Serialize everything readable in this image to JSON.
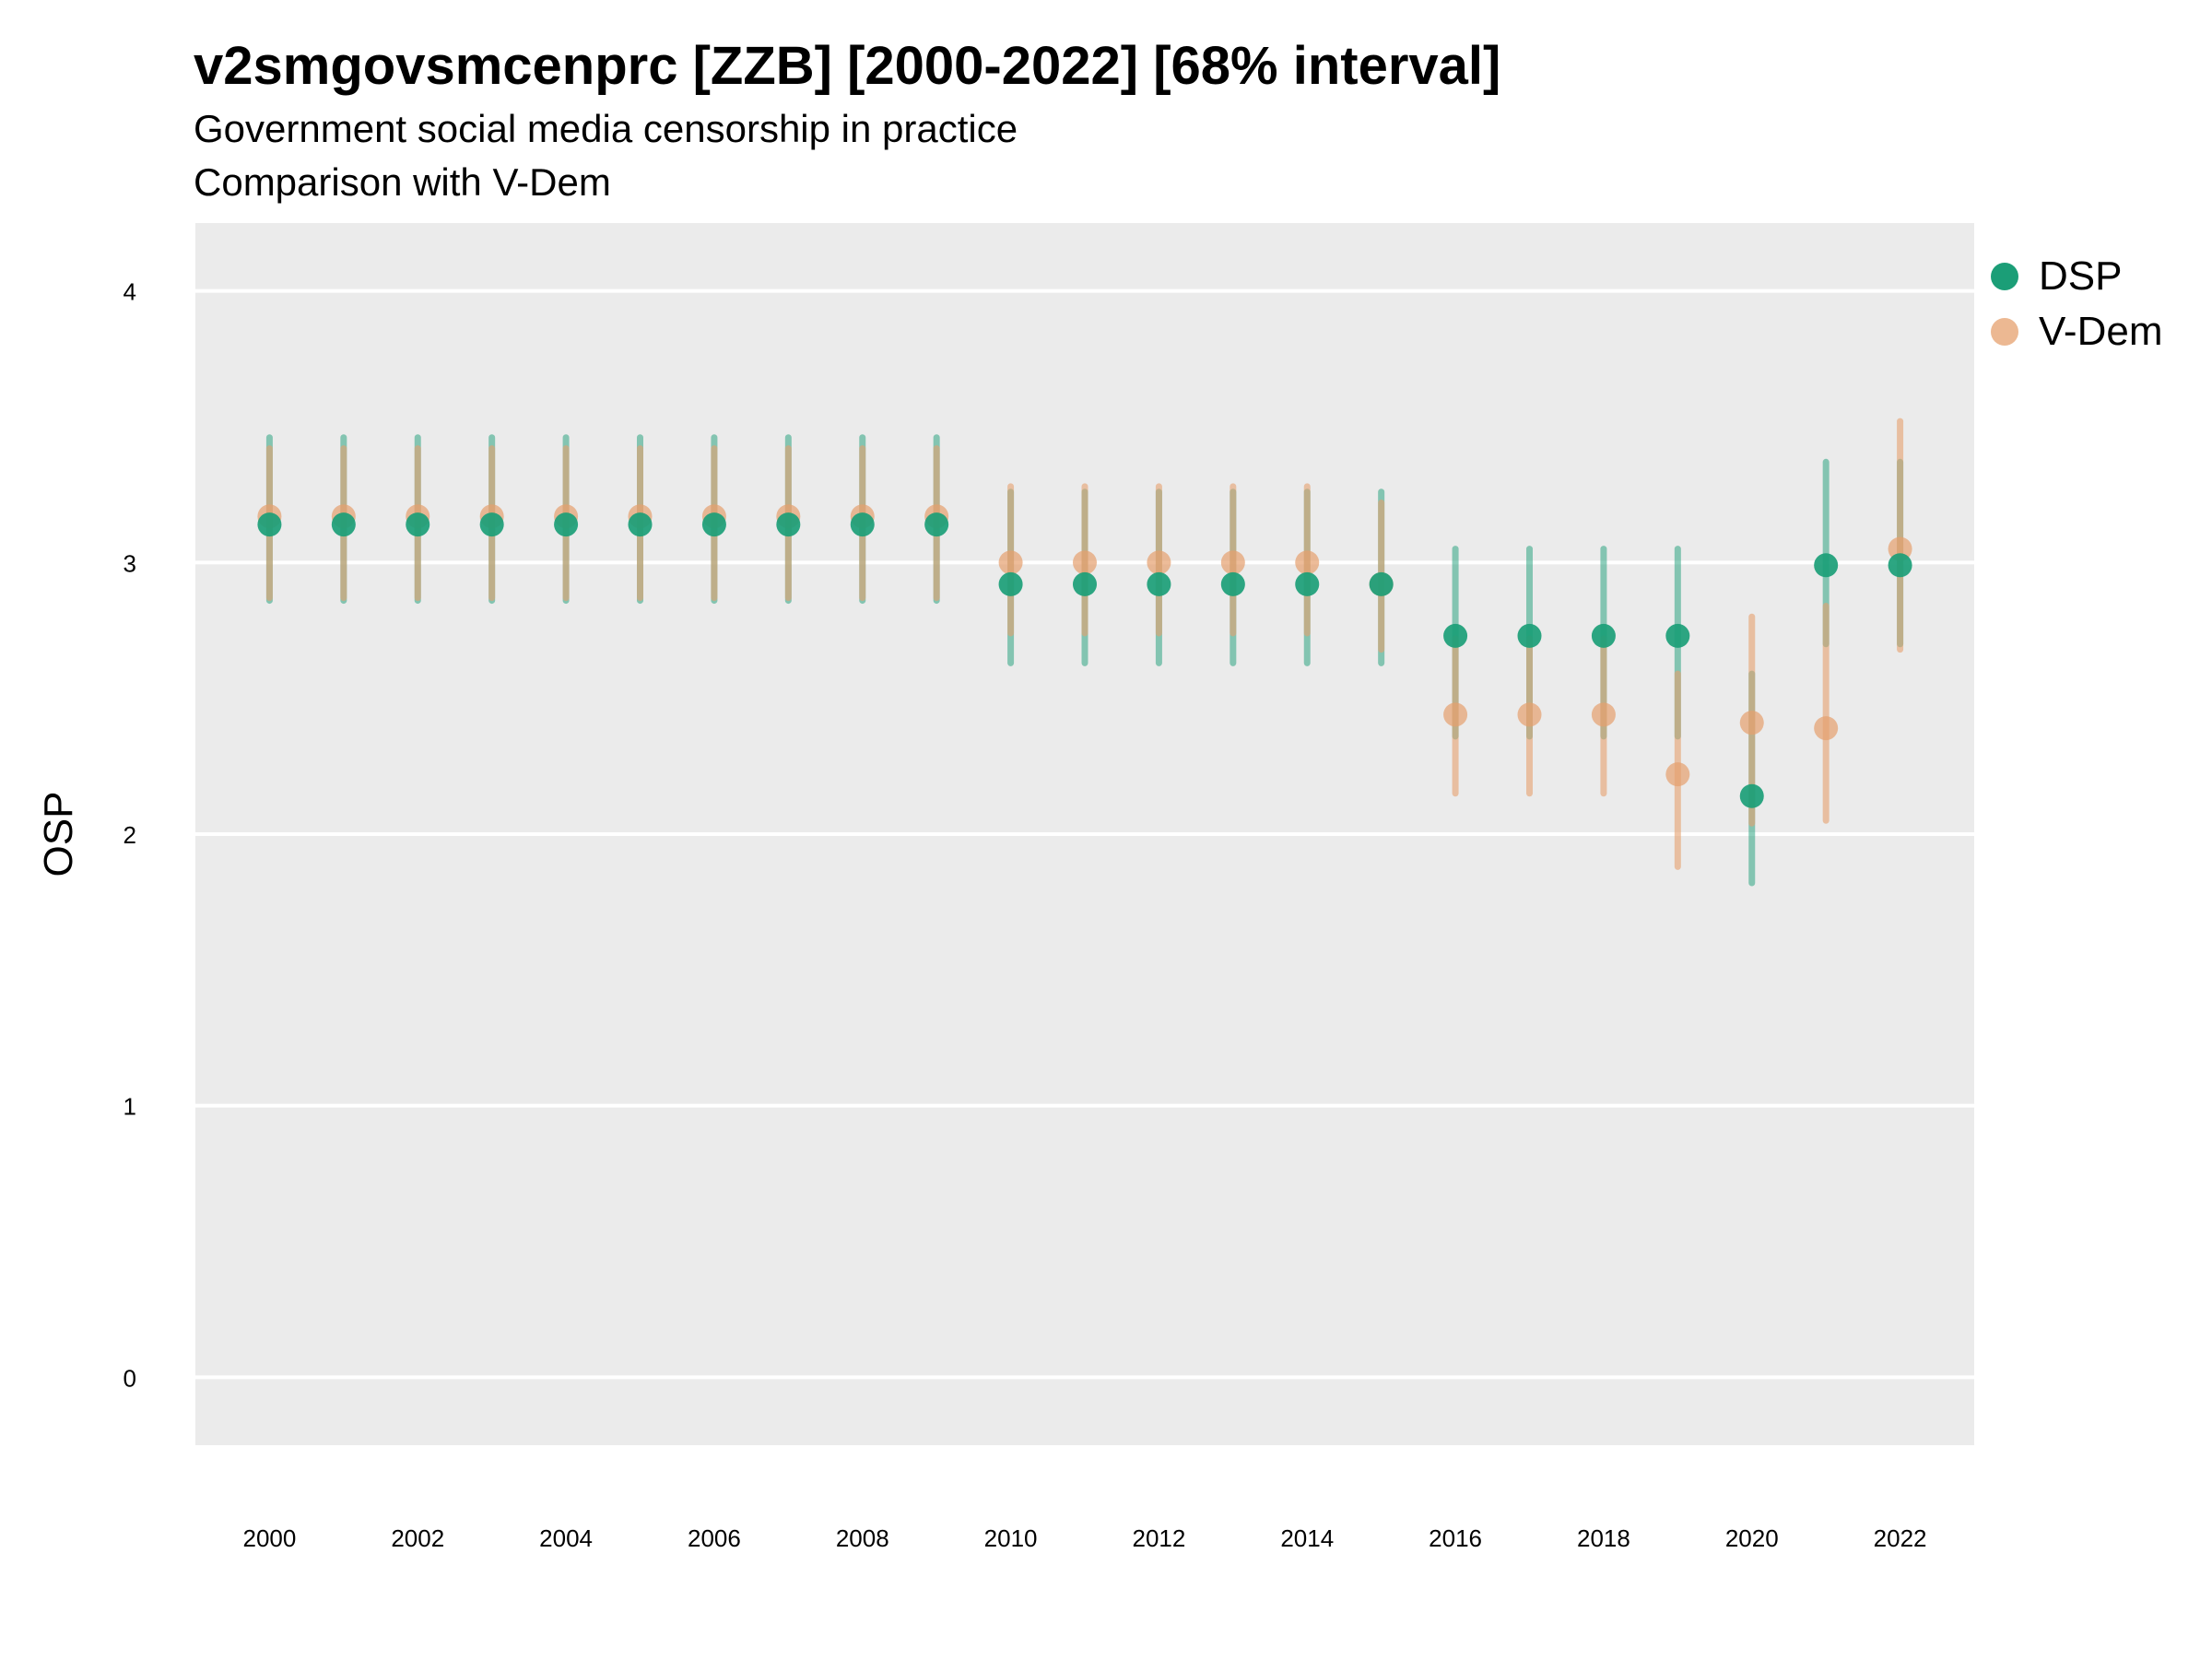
{
  "title": "v2smgovsmcenprc [ZZB] [2000-2022] [68% interval]",
  "subtitle": "Government social media censorship in practice",
  "subtitle2": "Comparison with V-Dem",
  "colors": {
    "dsp": "#1b9e77",
    "vdem": "#e6a06e",
    "panel": "#ebebeb",
    "grid": "#ffffff"
  },
  "chart_data": {
    "type": "scatter",
    "xlabel": "",
    "ylabel": "OSP",
    "ylim": [
      -0.25,
      4.25
    ],
    "xlim": [
      1999,
      2023
    ],
    "yticks": [
      0,
      1,
      2,
      3,
      4
    ],
    "xticks": [
      2000,
      2002,
      2004,
      2006,
      2008,
      2010,
      2012,
      2014,
      2016,
      2018,
      2020,
      2022
    ],
    "grid": true,
    "legend_position": "right",
    "series": [
      {
        "name": "DSP",
        "x": [
          2000,
          2001,
          2002,
          2003,
          2004,
          2005,
          2006,
          2007,
          2008,
          2009,
          2010,
          2011,
          2012,
          2013,
          2014,
          2015,
          2016,
          2017,
          2018,
          2019,
          2020,
          2021,
          2022
        ],
        "y": [
          3.14,
          3.14,
          3.14,
          3.14,
          3.14,
          3.14,
          3.14,
          3.14,
          3.14,
          3.14,
          2.92,
          2.92,
          2.92,
          2.92,
          2.92,
          2.92,
          2.73,
          2.73,
          2.73,
          2.73,
          2.14,
          2.99,
          2.99
        ],
        "lower": [
          2.86,
          2.86,
          2.86,
          2.86,
          2.86,
          2.86,
          2.86,
          2.86,
          2.86,
          2.86,
          2.63,
          2.63,
          2.63,
          2.63,
          2.63,
          2.63,
          2.36,
          2.36,
          2.36,
          2.36,
          1.82,
          2.7,
          2.7
        ],
        "upper": [
          3.46,
          3.46,
          3.46,
          3.46,
          3.46,
          3.46,
          3.46,
          3.46,
          3.46,
          3.46,
          3.26,
          3.26,
          3.26,
          3.26,
          3.26,
          3.26,
          3.05,
          3.05,
          3.05,
          3.05,
          2.59,
          3.37,
          3.37
        ]
      },
      {
        "name": "V-Dem",
        "x": [
          2000,
          2001,
          2002,
          2003,
          2004,
          2005,
          2006,
          2007,
          2008,
          2009,
          2010,
          2011,
          2012,
          2013,
          2014,
          2015,
          2016,
          2017,
          2018,
          2019,
          2020,
          2021,
          2022
        ],
        "y": [
          3.17,
          3.17,
          3.17,
          3.17,
          3.17,
          3.17,
          3.17,
          3.17,
          3.17,
          3.17,
          3.0,
          3.0,
          3.0,
          3.0,
          3.0,
          2.92,
          2.44,
          2.44,
          2.44,
          2.22,
          2.41,
          2.39,
          3.05
        ],
        "lower": [
          2.87,
          2.87,
          2.87,
          2.87,
          2.87,
          2.87,
          2.87,
          2.87,
          2.87,
          2.87,
          2.74,
          2.74,
          2.74,
          2.74,
          2.74,
          2.68,
          2.15,
          2.15,
          2.15,
          1.88,
          2.04,
          2.05,
          2.68
        ],
        "upper": [
          3.42,
          3.42,
          3.42,
          3.42,
          3.42,
          3.42,
          3.42,
          3.42,
          3.42,
          3.42,
          3.28,
          3.28,
          3.28,
          3.28,
          3.28,
          3.22,
          2.72,
          2.72,
          2.72,
          2.59,
          2.8,
          2.84,
          3.52
        ]
      }
    ]
  }
}
